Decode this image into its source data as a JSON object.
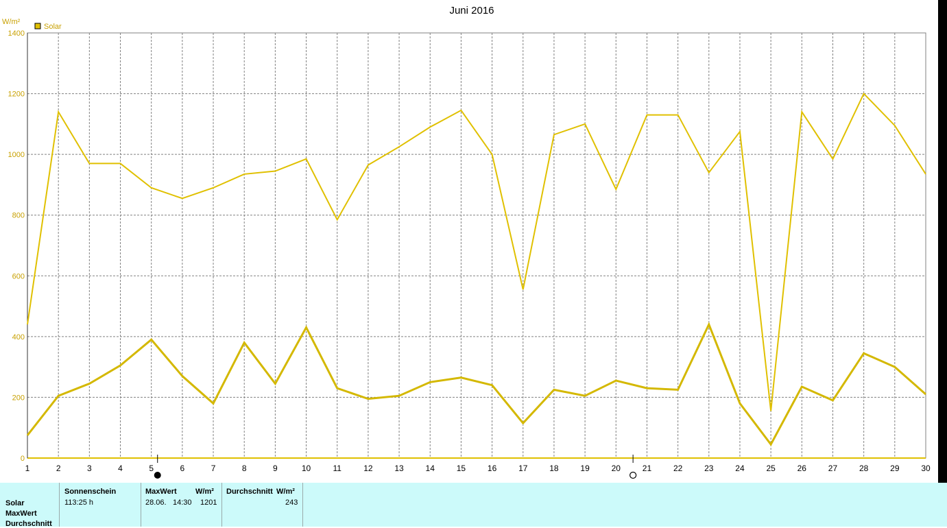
{
  "chart_data": {
    "type": "line",
    "title": "Juni 2016",
    "ylabel": "W/m²",
    "ylim": [
      0,
      1400
    ],
    "yticks": [
      0,
      200,
      400,
      600,
      800,
      1000,
      1200,
      1400
    ],
    "xlim": [
      1,
      30
    ],
    "x": [
      1,
      2,
      3,
      4,
      5,
      6,
      7,
      8,
      9,
      10,
      11,
      12,
      13,
      14,
      15,
      16,
      17,
      18,
      19,
      20,
      21,
      22,
      23,
      24,
      25,
      26,
      27,
      28,
      29,
      30
    ],
    "grid": true,
    "legend": {
      "position": "top-left",
      "entries": [
        "Solar"
      ]
    },
    "series": [
      {
        "name": "Solar",
        "role": "max",
        "color": "#e0c000",
        "values": [
          440,
          1140,
          970,
          970,
          890,
          855,
          890,
          935,
          945,
          985,
          785,
          965,
          1025,
          1090,
          1145,
          1000,
          555,
          1065,
          1100,
          885,
          1130,
          1130,
          940,
          1075,
          155,
          1140,
          985,
          1200,
          1095,
          935
        ]
      },
      {
        "name": "Solar",
        "role": "average",
        "color": "#d4b800",
        "values": [
          75,
          205,
          245,
          305,
          390,
          270,
          180,
          380,
          245,
          430,
          230,
          195,
          205,
          250,
          265,
          240,
          115,
          225,
          205,
          255,
          230,
          225,
          440,
          180,
          45,
          235,
          190,
          345,
          300,
          210
        ]
      }
    ],
    "moon_phases": [
      {
        "day": 5.2,
        "phase": "new",
        "icon": "new-moon-icon"
      },
      {
        "day": 20.55,
        "phase": "full",
        "icon": "full-moon-icon"
      }
    ]
  },
  "summary_table": {
    "row_labels": [
      "Solar",
      "MaxWert",
      "Durchschnitt"
    ],
    "col_sonnenschein": {
      "header": "Sonnenschein",
      "value": "113:25 h"
    },
    "col_maxwert": {
      "header": "MaxWert",
      "unit": "W/m²",
      "date": "28.06.",
      "time": "14:30",
      "value": "1201"
    },
    "col_durchschnitt": {
      "header": "Durchschnitt",
      "unit": "W/m²",
      "value": "243"
    }
  },
  "colors": {
    "accent": "#e0c000",
    "axis_text": "#c8a000",
    "grid": "#808080",
    "table_bg": "#ccfafa"
  }
}
